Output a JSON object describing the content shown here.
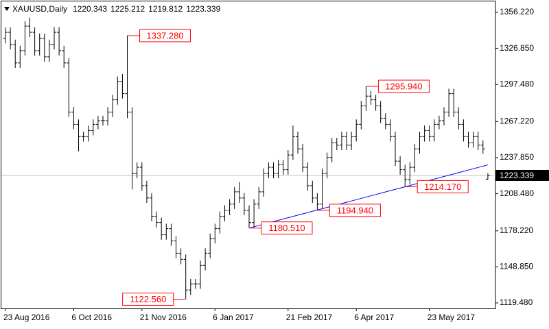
{
  "chart_data": {
    "type": "ohlc",
    "title": "XAUUSD,Daily",
    "color": "#000000",
    "label_color": "#ff0000",
    "last_price_color": "#c0c0c0",
    "categories": [
      "23 Aug 2016",
      null,
      null,
      null,
      null,
      null,
      null,
      null,
      null,
      null,
      null,
      null,
      null,
      null,
      "6 Oct 2016",
      null,
      null,
      null,
      null,
      null,
      null,
      null,
      null,
      null,
      null,
      null,
      null,
      null,
      "21 Nov 2016",
      null,
      null,
      null,
      null,
      null,
      null,
      null,
      null,
      null,
      null,
      null,
      null,
      null,
      null,
      "6 Jan 2017",
      null,
      null,
      null,
      null,
      null,
      null,
      null,
      null,
      null,
      null,
      null,
      null,
      null,
      null,
      "21 Feb 2017",
      null,
      null,
      null,
      null,
      null,
      null,
      null,
      null,
      null,
      null,
      null,
      null,
      null,
      "6 Apr 2017",
      null,
      null,
      null,
      null,
      null,
      null,
      null,
      null,
      null,
      null,
      null,
      null,
      null,
      null,
      "23 May 2017",
      null,
      null,
      null,
      null,
      null,
      null,
      null,
      null,
      null,
      null,
      null,
      null
    ],
    "open": [
      1335,
      1340,
      1330,
      1315,
      1325,
      1345,
      1340,
      1325,
      1335,
      1320,
      1330,
      1340,
      1325,
      1315,
      1275,
      1265,
      1255,
      1255,
      1260,
      1265,
      1268,
      1268,
      1275,
      1285,
      1300,
      1290,
      1275,
      1225,
      1230,
      1215,
      1205,
      1190,
      1185,
      1175,
      1180,
      1170,
      1160,
      1155,
      1130,
      1135,
      1135,
      1150,
      1160,
      1172,
      1180,
      1190,
      1195,
      1200,
      1210,
      1205,
      1195,
      1185,
      1200,
      1210,
      1225,
      1230,
      1225,
      1232,
      1228,
      1240,
      1255,
      1245,
      1230,
      1215,
      1205,
      1200,
      1225,
      1238,
      1250,
      1248,
      1255,
      1248,
      1255,
      1265,
      1280,
      1288,
      1285,
      1280,
      1270,
      1265,
      1255,
      1235,
      1228,
      1220,
      1230,
      1245,
      1255,
      1260,
      1255,
      1265,
      1268,
      1275,
      1290,
      1275,
      1265,
      1255,
      1250,
      1255,
      1248,
      1220.343
    ],
    "high": [
      1344,
      1344,
      1334,
      1329,
      1349,
      1352,
      1344,
      1339,
      1339,
      1334,
      1344,
      1344,
      1329,
      1319,
      1279,
      1269,
      1259,
      1264,
      1269,
      1272,
      1272,
      1279,
      1289,
      1304,
      1306,
      1337.28,
      1279,
      1234,
      1234,
      1219,
      1209,
      1194,
      1189,
      1184,
      1184,
      1174,
      1164,
      1159,
      1139,
      1139,
      1154,
      1164,
      1176,
      1184,
      1194,
      1199,
      1204,
      1214,
      1218,
      1209,
      1199,
      1204,
      1214,
      1229,
      1234,
      1234,
      1236,
      1236,
      1244,
      1264,
      1259,
      1249,
      1234,
      1219,
      1209,
      1229,
      1242,
      1254,
      1254,
      1259,
      1259,
      1259,
      1269,
      1284,
      1295.94,
      1292,
      1289,
      1284,
      1274,
      1269,
      1259,
      1239,
      1232,
      1234,
      1249,
      1259,
      1264,
      1264,
      1269,
      1272,
      1279,
      1294,
      1294,
      1279,
      1269,
      1259,
      1259,
      1259,
      1252,
      1225.212
    ],
    "low": [
      1331,
      1326,
      1311,
      1311,
      1321,
      1336,
      1321,
      1321,
      1316,
      1316,
      1326,
      1321,
      1311,
      1271,
      1261,
      1243,
      1251,
      1251,
      1256,
      1261,
      1264,
      1264,
      1271,
      1281,
      1286,
      1270,
      1212,
      1221,
      1211,
      1201,
      1186,
      1181,
      1171,
      1171,
      1166,
      1156,
      1151,
      1122.56,
      1126,
      1131,
      1131,
      1146,
      1156,
      1168,
      1176,
      1186,
      1191,
      1196,
      1201,
      1191,
      1180.51,
      1181,
      1196,
      1206,
      1221,
      1221,
      1221,
      1224,
      1224,
      1236,
      1241,
      1226,
      1211,
      1201,
      1194.94,
      1196,
      1221,
      1234,
      1244,
      1244,
      1244,
      1244,
      1251,
      1261,
      1276,
      1281,
      1276,
      1266,
      1261,
      1251,
      1231,
      1224,
      1214.17,
      1216,
      1226,
      1241,
      1251,
      1251,
      1251,
      1261,
      1264,
      1271,
      1271,
      1261,
      1251,
      1246,
      1246,
      1244,
      1241,
      1219.812
    ],
    "close": [
      1340,
      1330,
      1315,
      1325,
      1345,
      1340,
      1325,
      1335,
      1320,
      1330,
      1340,
      1325,
      1315,
      1275,
      1265,
      1255,
      1255,
      1260,
      1265,
      1268,
      1268,
      1275,
      1285,
      1300,
      1290,
      1275,
      1225,
      1230,
      1215,
      1205,
      1190,
      1185,
      1175,
      1180,
      1170,
      1160,
      1155,
      1130,
      1135,
      1135,
      1150,
      1160,
      1172,
      1180,
      1190,
      1195,
      1200,
      1210,
      1205,
      1195,
      1185,
      1200,
      1210,
      1225,
      1230,
      1225,
      1232,
      1228,
      1240,
      1255,
      1245,
      1230,
      1215,
      1205,
      1200,
      1225,
      1238,
      1250,
      1248,
      1255,
      1248,
      1255,
      1265,
      1280,
      1288,
      1285,
      1280,
      1270,
      1265,
      1255,
      1235,
      1228,
      1220,
      1230,
      1245,
      1255,
      1260,
      1255,
      1265,
      1268,
      1275,
      1290,
      1275,
      1265,
      1255,
      1250,
      1255,
      1248,
      1245,
      1223.339
    ],
    "high_value_labels": [
      null,
      null,
      null,
      null,
      null,
      null,
      null,
      null,
      null,
      null,
      null,
      null,
      null,
      null,
      null,
      null,
      null,
      null,
      null,
      null,
      null,
      null,
      null,
      null,
      null,
      "1337.280",
      null,
      null,
      null,
      null,
      null,
      null,
      null,
      null,
      null,
      null,
      null,
      null,
      null,
      null,
      null,
      null,
      null,
      null,
      null,
      null,
      null,
      null,
      null,
      null,
      null,
      null,
      null,
      null,
      null,
      null,
      null,
      null,
      null,
      null,
      null,
      null,
      null,
      null,
      null,
      null,
      null,
      null,
      null,
      null,
      null,
      null,
      null,
      null,
      "1295.940",
      null,
      null,
      null,
      null,
      null,
      null,
      null,
      null,
      null,
      null,
      null,
      null,
      null,
      null,
      null,
      null,
      null,
      null,
      null,
      null,
      null,
      null,
      null,
      null,
      null
    ],
    "low_value_labels": [
      null,
      null,
      null,
      null,
      null,
      null,
      null,
      null,
      null,
      null,
      null,
      null,
      null,
      null,
      null,
      null,
      null,
      null,
      null,
      null,
      null,
      null,
      null,
      null,
      null,
      null,
      null,
      null,
      null,
      null,
      null,
      null,
      null,
      null,
      null,
      null,
      null,
      "1122.560",
      null,
      null,
      null,
      null,
      null,
      null,
      null,
      null,
      null,
      null,
      null,
      null,
      "1180.510",
      null,
      null,
      null,
      null,
      null,
      null,
      null,
      null,
      null,
      null,
      null,
      null,
      null,
      "1194.940",
      null,
      null,
      null,
      null,
      null,
      null,
      null,
      null,
      null,
      null,
      null,
      null,
      null,
      null,
      null,
      null,
      null,
      "1214.170",
      null,
      null,
      null,
      null,
      null,
      null,
      null,
      null,
      null,
      null,
      null,
      null,
      null,
      null,
      null,
      null,
      null
    ],
    "trendline": {
      "color": "#0000ff",
      "values": [
        null,
        null,
        null,
        null,
        null,
        null,
        null,
        null,
        null,
        null,
        null,
        null,
        null,
        null,
        null,
        null,
        null,
        null,
        null,
        null,
        null,
        null,
        null,
        null,
        null,
        null,
        null,
        null,
        null,
        null,
        null,
        null,
        null,
        null,
        null,
        null,
        null,
        null,
        null,
        null,
        null,
        null,
        null,
        null,
        null,
        null,
        null,
        null,
        null,
        null,
        1180.51,
        1181.56,
        1182.61,
        1183.66,
        1184.71,
        1185.76,
        1186.81,
        1187.86,
        1188.91,
        1189.96,
        1191.01,
        1192.06,
        1193.11,
        1194.16,
        1195.21,
        1196.26,
        1197.31,
        1198.36,
        1199.41,
        1200.46,
        1201.51,
        1202.56,
        1203.61,
        1204.66,
        1205.71,
        1206.76,
        1207.81,
        1208.86,
        1209.91,
        1210.96,
        1212.01,
        1213.06,
        1214.11,
        1215.16,
        1216.21,
        1217.26,
        1218.31,
        1219.36,
        1220.41,
        1221.46,
        1222.51,
        1223.56,
        1224.61,
        1225.66,
        1226.71,
        1227.76,
        1228.81,
        1229.86,
        1230.91,
        1231.96
      ]
    },
    "ylim": [
      1115.0,
      1363.5
    ],
    "yticks": [
      {
        "value": 1356.22,
        "label": "1356.220"
      },
      {
        "value": 1326.85,
        "label": "1326.850"
      },
      {
        "value": 1297.48,
        "label": "1297.480"
      },
      {
        "value": 1267.22,
        "label": "1267.220"
      },
      {
        "value": 1237.85,
        "label": "1237.850"
      },
      {
        "value": 1208.48,
        "label": "1208.480"
      },
      {
        "value": 1178.22,
        "label": "1178.220"
      },
      {
        "value": 1148.85,
        "label": "1148.850"
      },
      {
        "value": 1119.48,
        "label": "1119.480"
      }
    ]
  }
}
